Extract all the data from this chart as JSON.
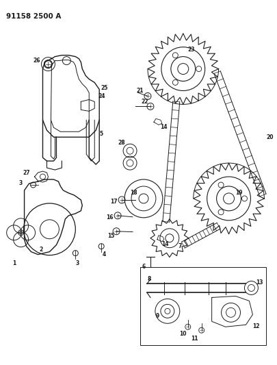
{
  "title": "91158 2500 A",
  "bg_color": "#ffffff",
  "line_color": "#1a1a1a",
  "fig_width": 4.06,
  "fig_height": 5.33,
  "dpi": 100
}
